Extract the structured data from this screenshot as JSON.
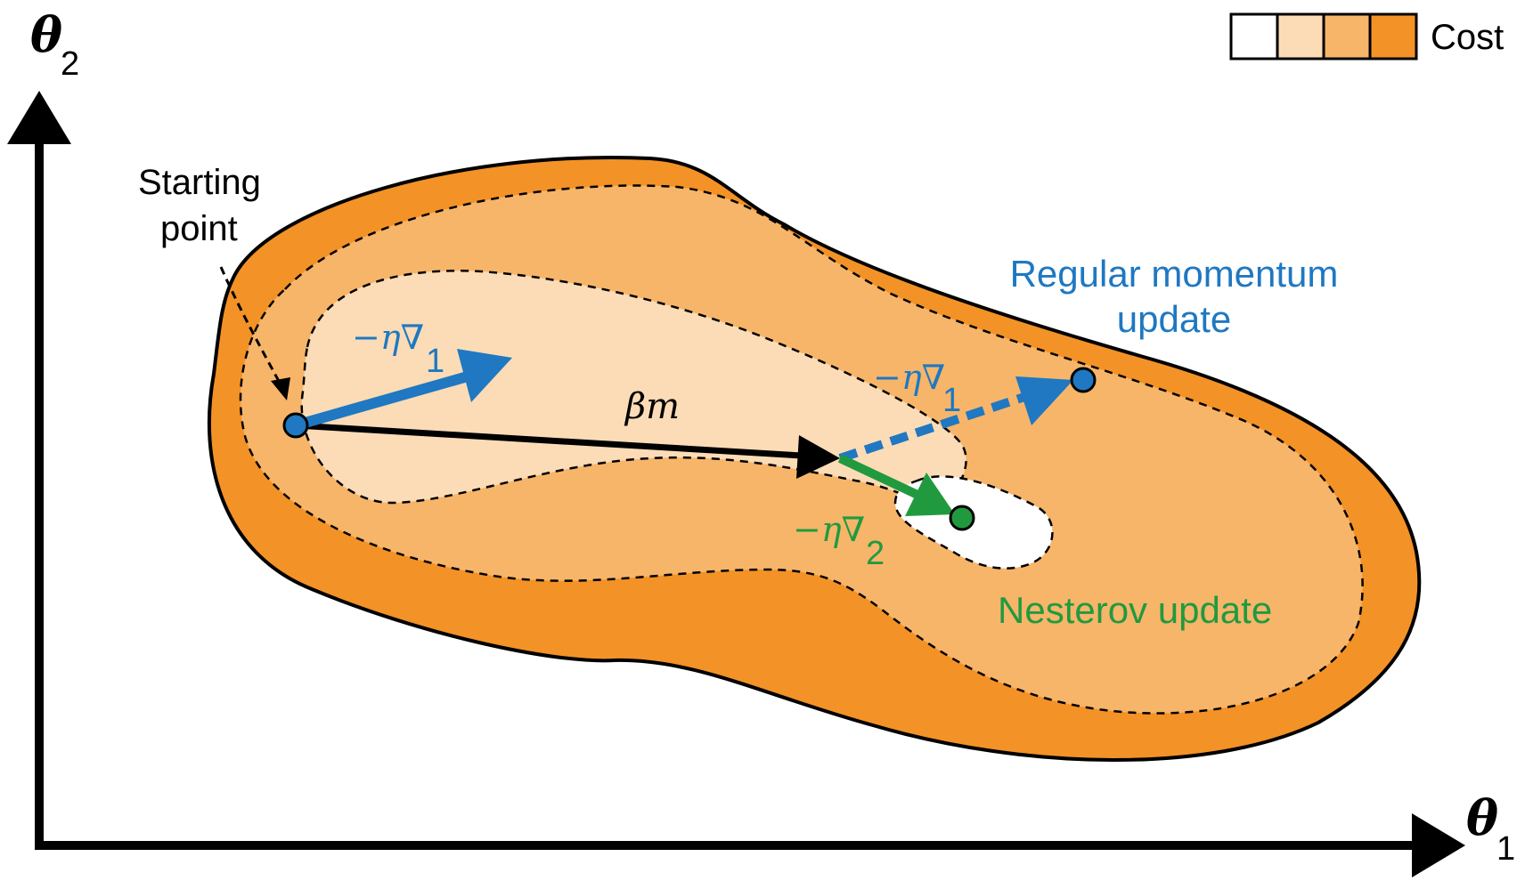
{
  "axes": {
    "y_label": {
      "symbol": "θ",
      "subscript": "2"
    },
    "x_label": {
      "symbol": "θ",
      "subscript": "1"
    }
  },
  "legend": {
    "label": "Cost",
    "swatches": [
      "#ffffff",
      "#fbdcb6",
      "#f7b56a",
      "#f39226"
    ]
  },
  "colors": {
    "outer": "#f39226",
    "middle": "#f7b56a",
    "inner": "#fbdcb6",
    "core": "#ffffff",
    "regular": "#1f78c1",
    "nesterov": "#219a3f",
    "momentum": "#000000"
  },
  "annotations": {
    "starting_point_line1": "Starting",
    "starting_point_line2": "point",
    "momentum_symbol": "βm",
    "regular_label_line1": "Regular momentum",
    "regular_label_line2": "update",
    "nesterov_label": "Nesterov update"
  },
  "gradients": {
    "grad1_start": {
      "prefix": "−η∇",
      "subscript": "1"
    },
    "grad1_regular": {
      "prefix": "−η∇",
      "subscript": "1"
    },
    "grad2_nesterov": {
      "prefix": "−η∇",
      "subscript": "2"
    }
  }
}
